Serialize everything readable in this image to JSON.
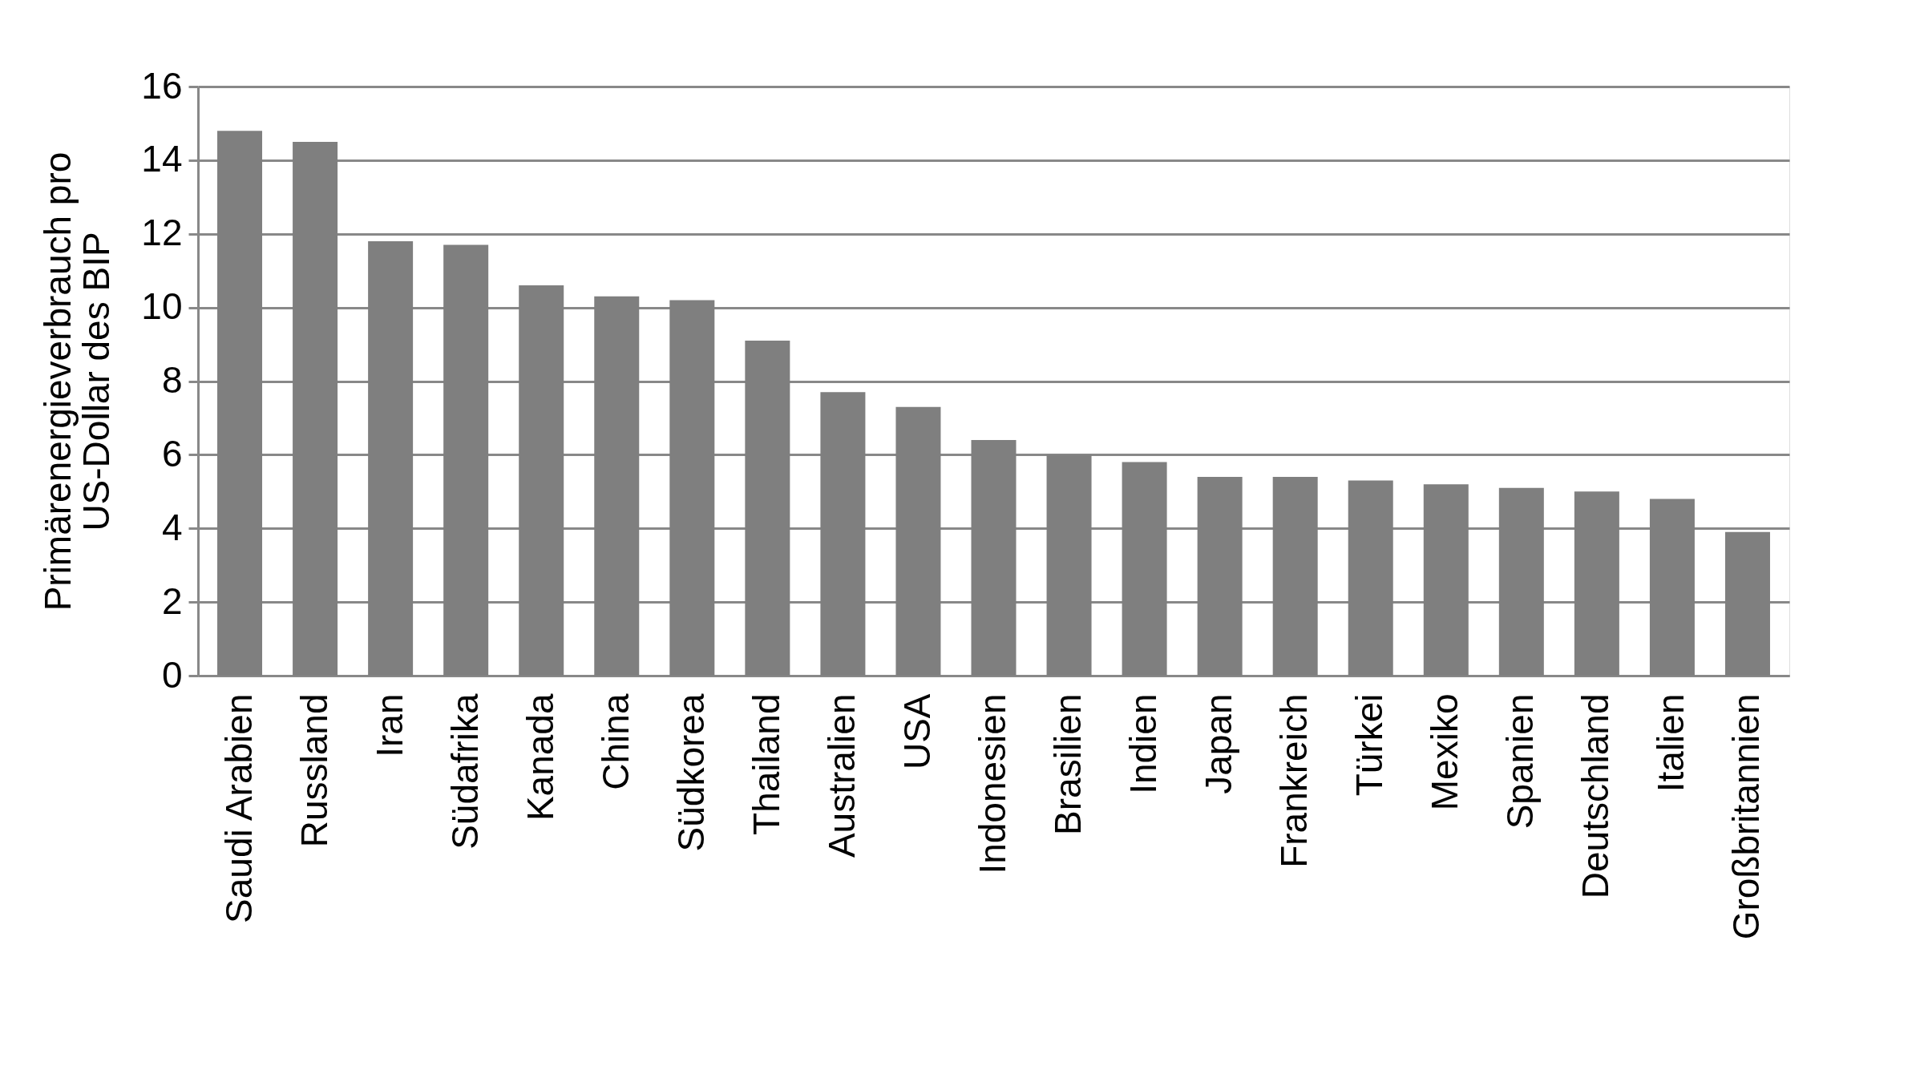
{
  "chart_data": {
    "type": "bar",
    "ylabel": "Primärenergieverbrauch pro\nUS-Dollar des BIP",
    "categories": [
      "Saudi Arabien",
      "Russland",
      "Iran",
      "Südafrika",
      "Kanada",
      "China",
      "Südkorea",
      "Thailand",
      "Australien",
      "USA",
      "Indonesien",
      "Brasilien",
      "Indien",
      "Japan",
      "Frankreich",
      "Türkei",
      "Mexiko",
      "Spanien",
      "Deutschland",
      "Italien",
      "Großbritannien"
    ],
    "values": [
      14.8,
      14.5,
      11.8,
      11.7,
      10.6,
      10.3,
      10.2,
      9.1,
      7.7,
      7.3,
      6.4,
      6.0,
      5.8,
      5.4,
      5.4,
      5.3,
      5.2,
      5.1,
      5.0,
      4.8,
      3.9
    ],
    "color": "#7f7f7f",
    "ylim": [
      0,
      16
    ],
    "yticks": [
      0,
      2,
      4,
      6,
      8,
      10,
      12,
      14,
      16
    ],
    "grid": "y"
  }
}
